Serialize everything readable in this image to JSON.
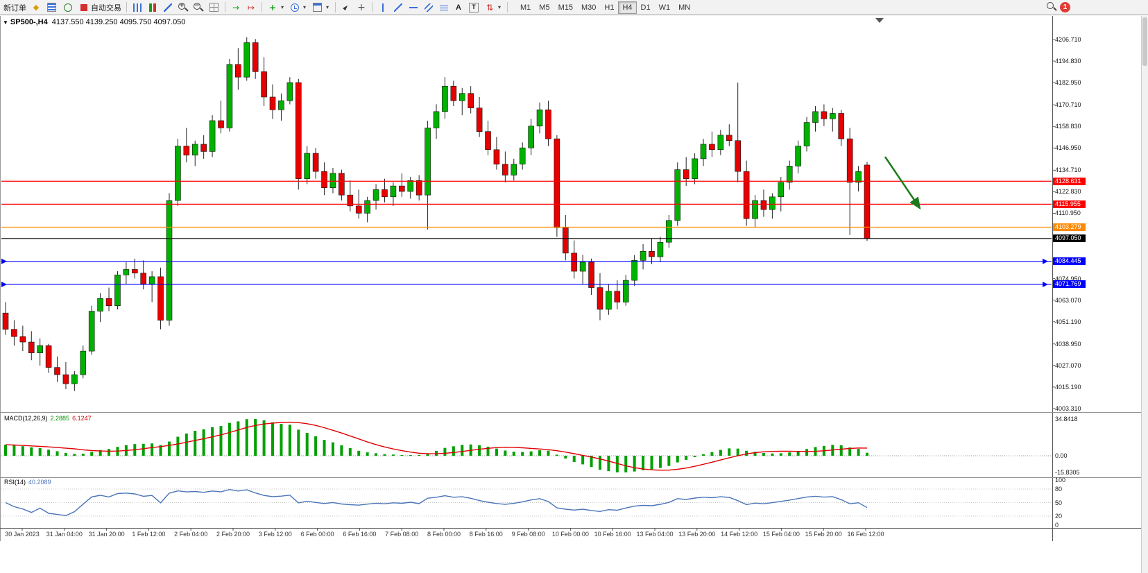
{
  "window": {
    "notification_count": "1"
  },
  "toolbar": {
    "new_order_label": "新订单",
    "autotrading_label": "自动交易",
    "text_tool_label": "A",
    "label_tool_label": "T",
    "timeframes": [
      "M1",
      "M5",
      "M15",
      "M30",
      "H1",
      "H4",
      "D1",
      "W1",
      "MN"
    ],
    "active_timeframe": "H4"
  },
  "chart": {
    "title": "SP500-,H4",
    "ohlc_text": "4137.550 4139.250 4095.750 4097.050",
    "price_axis_labels": [
      "4206.710",
      "4194.830",
      "4182.950",
      "4170.710",
      "4158.830",
      "4146.950",
      "4134.710",
      "4122.830",
      "4110.950",
      "4074.950",
      "4063.070",
      "4051.190",
      "4038.950",
      "4027.070",
      "4015.190",
      "4003.310"
    ],
    "hlines": [
      {
        "price": 4128.631,
        "label": "4128.631",
        "color": "#ff0000"
      },
      {
        "price": 4115.955,
        "label": "4115.955",
        "color": "#ff0000"
      },
      {
        "price": 4103.279,
        "label": "4103.279",
        "color": "#ff8a00"
      },
      {
        "price": 4097.05,
        "label": "4097.050",
        "color": "#000000",
        "bid": true
      },
      {
        "price": 4084.445,
        "label": "4084.445",
        "color": "#0000ff",
        "arrows": true
      },
      {
        "price": 4071.769,
        "label": "4071.769",
        "color": "#0000ff",
        "arrows": true
      }
    ],
    "colors": {
      "bull": "#00b200",
      "bear": "#e60000",
      "wick": "#222222",
      "annotation_arrow": "#1c7a1c"
    }
  },
  "chart_data": {
    "type": "candlestick",
    "symbol": "SP500-",
    "timeframe": "H4",
    "price_axis_top": 4206.71,
    "price_axis_bottom": 4003.31,
    "candles_ohlc": [
      [
        4056,
        4062,
        4044,
        4047
      ],
      [
        4047,
        4052,
        4038,
        4043
      ],
      [
        4043,
        4049,
        4035,
        4040
      ],
      [
        4040,
        4046,
        4030,
        4034
      ],
      [
        4034,
        4042,
        4027,
        4038
      ],
      [
        4038,
        4039,
        4023,
        4026
      ],
      [
        4026,
        4032,
        4018,
        4022
      ],
      [
        4022,
        4029,
        4014,
        4017
      ],
      [
        4017,
        4024,
        4013,
        4022
      ],
      [
        4022,
        4038,
        4020,
        4035
      ],
      [
        4035,
        4060,
        4033,
        4057
      ],
      [
        4057,
        4067,
        4051,
        4064
      ],
      [
        4064,
        4070,
        4057,
        4060
      ],
      [
        4060,
        4079,
        4058,
        4077
      ],
      [
        4077,
        4084,
        4072,
        4080
      ],
      [
        4080,
        4086,
        4075,
        4078
      ],
      [
        4078,
        4085,
        4069,
        4072
      ],
      [
        4072,
        4079,
        4062,
        4076
      ],
      [
        4076,
        4081,
        4047,
        4052
      ],
      [
        4052,
        4122,
        4049,
        4118
      ],
      [
        4118,
        4152,
        4115,
        4148
      ],
      [
        4148,
        4158,
        4139,
        4143
      ],
      [
        4143,
        4151,
        4137,
        4149
      ],
      [
        4149,
        4154,
        4141,
        4145
      ],
      [
        4145,
        4165,
        4142,
        4162
      ],
      [
        4162,
        4173,
        4155,
        4158
      ],
      [
        4158,
        4196,
        4156,
        4193
      ],
      [
        4193,
        4202,
        4179,
        4186
      ],
      [
        4186,
        4208,
        4184,
        4205
      ],
      [
        4205,
        4207,
        4185,
        4189
      ],
      [
        4189,
        4197,
        4170,
        4175
      ],
      [
        4175,
        4182,
        4163,
        4168
      ],
      [
        4168,
        4177,
        4162,
        4173
      ],
      [
        4173,
        4186,
        4171,
        4183
      ],
      [
        4183,
        4185,
        4124,
        4130
      ],
      [
        4130,
        4148,
        4127,
        4144
      ],
      [
        4144,
        4147,
        4130,
        4134
      ],
      [
        4134,
        4139,
        4121,
        4125
      ],
      [
        4125,
        4136,
        4122,
        4133
      ],
      [
        4133,
        4135,
        4118,
        4121
      ],
      [
        4121,
        4129,
        4112,
        4115
      ],
      [
        4115,
        4124,
        4108,
        4111
      ],
      [
        4111,
        4120,
        4106,
        4118
      ],
      [
        4118,
        4127,
        4113,
        4124
      ],
      [
        4124,
        4130,
        4117,
        4120
      ],
      [
        4120,
        4128,
        4115,
        4126
      ],
      [
        4126,
        4133,
        4120,
        4123
      ],
      [
        4123,
        4131,
        4119,
        4129
      ],
      [
        4129,
        4132,
        4118,
        4121
      ],
      [
        4121,
        4162,
        4102,
        4158
      ],
      [
        4158,
        4171,
        4152,
        4167
      ],
      [
        4167,
        4186,
        4163,
        4181
      ],
      [
        4181,
        4184,
        4170,
        4173
      ],
      [
        4173,
        4180,
        4165,
        4177
      ],
      [
        4177,
        4181,
        4166,
        4169
      ],
      [
        4169,
        4175,
        4153,
        4156
      ],
      [
        4156,
        4162,
        4143,
        4146
      ],
      [
        4146,
        4153,
        4135,
        4138
      ],
      [
        4138,
        4145,
        4128,
        4132
      ],
      [
        4132,
        4141,
        4129,
        4138
      ],
      [
        4138,
        4150,
        4135,
        4147
      ],
      [
        4147,
        4163,
        4143,
        4159
      ],
      [
        4159,
        4172,
        4155,
        4168
      ],
      [
        4168,
        4173,
        4148,
        4152
      ],
      [
        4152,
        4154,
        4098,
        4103
      ],
      [
        4103,
        4110,
        4085,
        4089
      ],
      [
        4089,
        4096,
        4075,
        4079
      ],
      [
        4079,
        4088,
        4072,
        4084
      ],
      [
        4084,
        4086,
        4066,
        4070
      ],
      [
        4070,
        4078,
        4052,
        4058
      ],
      [
        4058,
        4072,
        4055,
        4068
      ],
      [
        4068,
        4074,
        4058,
        4062
      ],
      [
        4062,
        4077,
        4060,
        4074
      ],
      [
        4074,
        4088,
        4071,
        4085
      ],
      [
        4085,
        4094,
        4080,
        4090
      ],
      [
        4090,
        4097,
        4083,
        4087
      ],
      [
        4087,
        4098,
        4084,
        4095
      ],
      [
        4095,
        4110,
        4092,
        4107
      ],
      [
        4107,
        4139,
        4104,
        4135
      ],
      [
        4135,
        4142,
        4126,
        4130
      ],
      [
        4130,
        4144,
        4127,
        4141
      ],
      [
        4141,
        4152,
        4137,
        4149
      ],
      [
        4149,
        4156,
        4142,
        4146
      ],
      [
        4146,
        4157,
        4143,
        4154
      ],
      [
        4154,
        4160,
        4148,
        4151
      ],
      [
        4151,
        4183,
        4128,
        4134
      ],
      [
        4134,
        4140,
        4104,
        4108
      ],
      [
        4108,
        4121,
        4103,
        4118
      ],
      [
        4118,
        4124,
        4109,
        4113
      ],
      [
        4113,
        4122,
        4108,
        4120
      ],
      [
        4120,
        4131,
        4112,
        4128
      ],
      [
        4128,
        4140,
        4124,
        4137
      ],
      [
        4137,
        4151,
        4133,
        4148
      ],
      [
        4148,
        4164,
        4145,
        4161
      ],
      [
        4161,
        4170,
        4156,
        4167
      ],
      [
        4167,
        4171,
        4159,
        4163
      ],
      [
        4163,
        4169,
        4156,
        4166
      ],
      [
        4166,
        4168,
        4148,
        4152
      ],
      [
        4152,
        4158,
        4099,
        4128
      ],
      [
        4128,
        4137,
        4123,
        4134
      ],
      [
        4137.55,
        4139.25,
        4095.75,
        4097.05
      ]
    ]
  },
  "indicators": {
    "macd": {
      "name": "MACD(12,26,9)",
      "value_main": "2.2885",
      "value_signal": "6.1247",
      "axis_labels": [
        "34.8418",
        "0.00",
        "-15.8305"
      ],
      "axis_max": 34.8418,
      "axis_min": -15.8305,
      "histogram_color": "#00a000",
      "signal_color": "#e00000"
    },
    "rsi": {
      "name": "RSI(14)",
      "value": "40.2089",
      "axis_labels": [
        "100",
        "80",
        "50",
        "20",
        "0"
      ],
      "axis_values": [
        100,
        80,
        50,
        20,
        0
      ],
      "levels": [
        80,
        50,
        20
      ],
      "line_color": "#4a74b8"
    }
  },
  "time_axis": {
    "labels": [
      "30 Jan 2023",
      "31 Jan 04:00",
      "31 Jan 20:00",
      "1 Feb 12:00",
      "2 Feb 04:00",
      "2 Feb 20:00",
      "3 Feb 12:00",
      "6 Feb 00:00",
      "6 Feb 16:00",
      "7 Feb 08:00",
      "8 Feb 00:00",
      "8 Feb 16:00",
      "9 Feb 08:00",
      "10 Feb 00:00",
      "10 Feb 16:00",
      "13 Feb 04:00",
      "13 Feb 20:00",
      "14 Feb 12:00",
      "15 Feb 04:00",
      "15 Feb 20:00",
      "16 Feb 12:00"
    ]
  }
}
